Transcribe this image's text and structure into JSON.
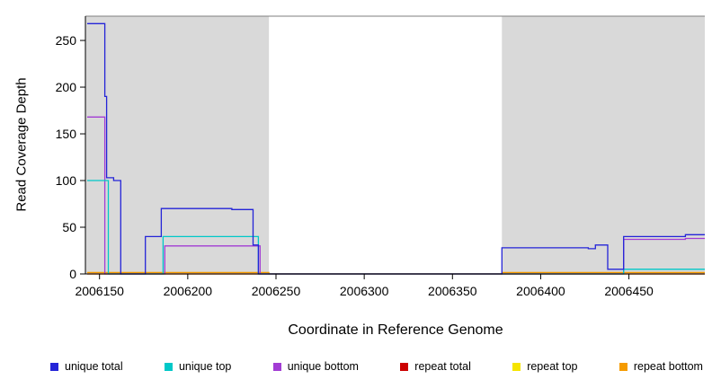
{
  "chart_data": {
    "type": "line",
    "title": "",
    "xlabel": "Coordinate in Reference Genome",
    "ylabel": "Read Coverage Depth",
    "xlim": [
      2006142,
      2006493
    ],
    "ylim": [
      0,
      276
    ],
    "xticks": [
      2006150,
      2006200,
      2006250,
      2006300,
      2006350,
      2006400,
      2006450
    ],
    "yticks": [
      0,
      50,
      100,
      150,
      200,
      250
    ],
    "grid": false,
    "legend_position": "bottom",
    "frame_color": "#7f7f7f",
    "axis_color": "#000000",
    "shade_color": "#d9d9d9",
    "shaded_regions": [
      [
        2006142,
        2006246
      ],
      [
        2006378,
        2006493
      ]
    ],
    "series": [
      {
        "name": "unique total",
        "color": "#2424d8",
        "points": [
          [
            2006143,
            268
          ],
          [
            2006153,
            268
          ],
          [
            2006153,
            190
          ],
          [
            2006154,
            190
          ],
          [
            2006154,
            103
          ],
          [
            2006158,
            103
          ],
          [
            2006158,
            100
          ],
          [
            2006162,
            100
          ],
          [
            2006162,
            0
          ],
          [
            2006176,
            0
          ],
          [
            2006176,
            40
          ],
          [
            2006185,
            40
          ],
          [
            2006185,
            70
          ],
          [
            2006225,
            70
          ],
          [
            2006225,
            69
          ],
          [
            2006237,
            69
          ],
          [
            2006237,
            31
          ],
          [
            2006240,
            31
          ],
          [
            2006240,
            0
          ],
          [
            2006378,
            0
          ],
          [
            2006378,
            28
          ],
          [
            2006427,
            28
          ],
          [
            2006427,
            27
          ],
          [
            2006431,
            27
          ],
          [
            2006431,
            31
          ],
          [
            2006438,
            31
          ],
          [
            2006438,
            5
          ],
          [
            2006447,
            5
          ],
          [
            2006447,
            40
          ],
          [
            2006482,
            40
          ],
          [
            2006482,
            42
          ],
          [
            2006493,
            42
          ]
        ]
      },
      {
        "name": "unique top",
        "color": "#00c8c8",
        "points": [
          [
            2006143,
            100
          ],
          [
            2006155,
            100
          ],
          [
            2006155,
            0
          ],
          [
            2006186,
            0
          ],
          [
            2006186,
            40
          ],
          [
            2006240,
            40
          ],
          [
            2006240,
            0
          ],
          [
            2006447,
            0
          ],
          [
            2006447,
            5
          ],
          [
            2006493,
            5
          ]
        ]
      },
      {
        "name": "unique bottom",
        "color": "#a23cd4",
        "points": [
          [
            2006143,
            168
          ],
          [
            2006153,
            168
          ],
          [
            2006153,
            0
          ],
          [
            2006187,
            0
          ],
          [
            2006187,
            30
          ],
          [
            2006241,
            30
          ],
          [
            2006241,
            0
          ],
          [
            2006447,
            0
          ],
          [
            2006447,
            37
          ],
          [
            2006482,
            37
          ],
          [
            2006482,
            38
          ],
          [
            2006493,
            38
          ]
        ]
      },
      {
        "name": "repeat total",
        "color": "#cc0000",
        "points": [
          [
            2006143,
            0
          ],
          [
            2006493,
            0
          ]
        ]
      },
      {
        "name": "repeat top",
        "color": "#f5e400",
        "points": [
          [
            2006143,
            0
          ],
          [
            2006493,
            0
          ]
        ]
      },
      {
        "name": "repeat bottom",
        "color": "#f59b00",
        "points": [
          [
            2006143,
            1.5
          ],
          [
            2006246,
            1.5
          ],
          [
            2006246,
            0
          ],
          [
            2006378,
            0
          ],
          [
            2006378,
            1.5
          ],
          [
            2006493,
            1.5
          ]
        ]
      }
    ]
  }
}
